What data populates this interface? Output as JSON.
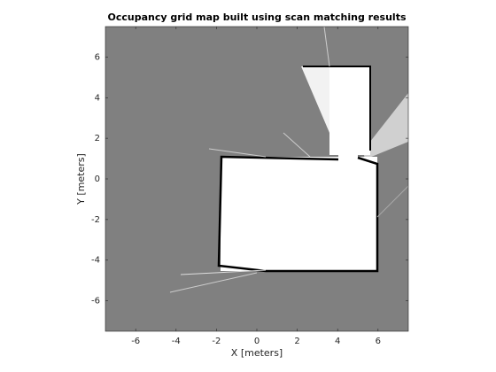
{
  "chart_data": {
    "type": "image",
    "title": "Occupancy grid map built using scan matching results",
    "xlabel": "X [meters]",
    "ylabel": "Y [meters]",
    "xlim": [
      -7.5,
      7.5
    ],
    "ylim": [
      -7.5,
      7.5
    ],
    "xticks": [
      -6,
      -4,
      -2,
      0,
      2,
      4,
      6
    ],
    "yticks": [
      -6,
      -4,
      -2,
      0,
      2,
      4,
      6
    ]
  }
}
